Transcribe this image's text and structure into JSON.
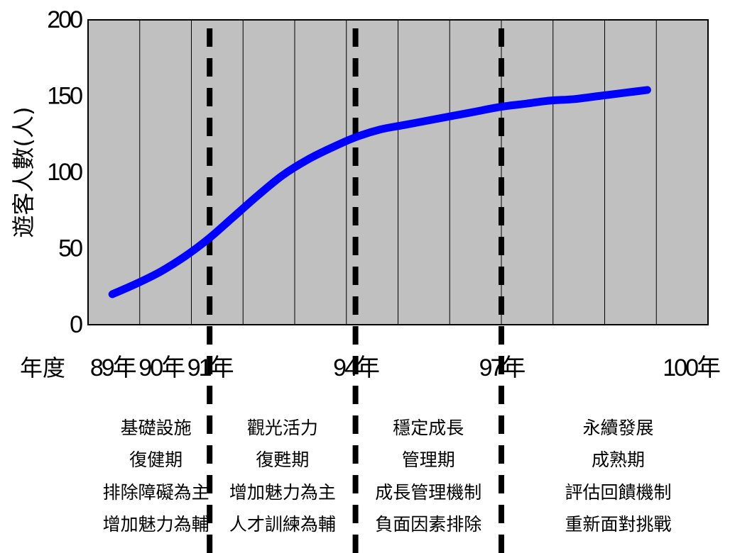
{
  "chart_data": {
    "type": "line",
    "ylabel": "遊客人數(人)",
    "ylim": [
      0,
      200
    ],
    "yticks": [
      0,
      50,
      100,
      150,
      200
    ],
    "xlabel": "年度",
    "xlim": [
      88.5,
      101.25
    ],
    "xtick_labels": [
      {
        "x": 89,
        "label": "89年"
      },
      {
        "x": 90,
        "label": "90年"
      },
      {
        "x": 91,
        "label": "91年"
      },
      {
        "x": 94,
        "label": "94年"
      },
      {
        "x": 97,
        "label": "97年"
      },
      {
        "x": 100,
        "label": "100年"
      }
    ],
    "grid": true,
    "plot_background": "#C0C0C0",
    "series": [
      {
        "color": "#0000FF",
        "x": [
          89,
          89.5,
          90,
          90.5,
          91,
          91.5,
          92,
          92.5,
          93,
          93.5,
          94,
          94.5,
          95,
          95.5,
          96,
          96.5,
          97,
          97.5,
          98,
          98.5,
          99,
          99.5,
          100
        ],
        "y": [
          20,
          27,
          35,
          45,
          57,
          71,
          85,
          98,
          108,
          116,
          123,
          128,
          131,
          134,
          137,
          140,
          143,
          145,
          147,
          148,
          150,
          152,
          154
        ]
      }
    ],
    "dividers_x": [
      91,
      94,
      97
    ],
    "phases": [
      {
        "lines": [
          "基礎設施",
          "復健期",
          "排除障礙為主",
          "增加魅力為輔"
        ]
      },
      {
        "lines": [
          "觀光活力",
          "復甦期",
          "增加魅力為主",
          "人才訓練為輔"
        ]
      },
      {
        "lines": [
          "穩定成長",
          "管理期",
          "成長管理機制",
          "負面因素排除"
        ]
      },
      {
        "lines": [
          "永續發展",
          "成熟期",
          "評估回饋機制",
          "重新面對挑戰"
        ]
      }
    ]
  }
}
